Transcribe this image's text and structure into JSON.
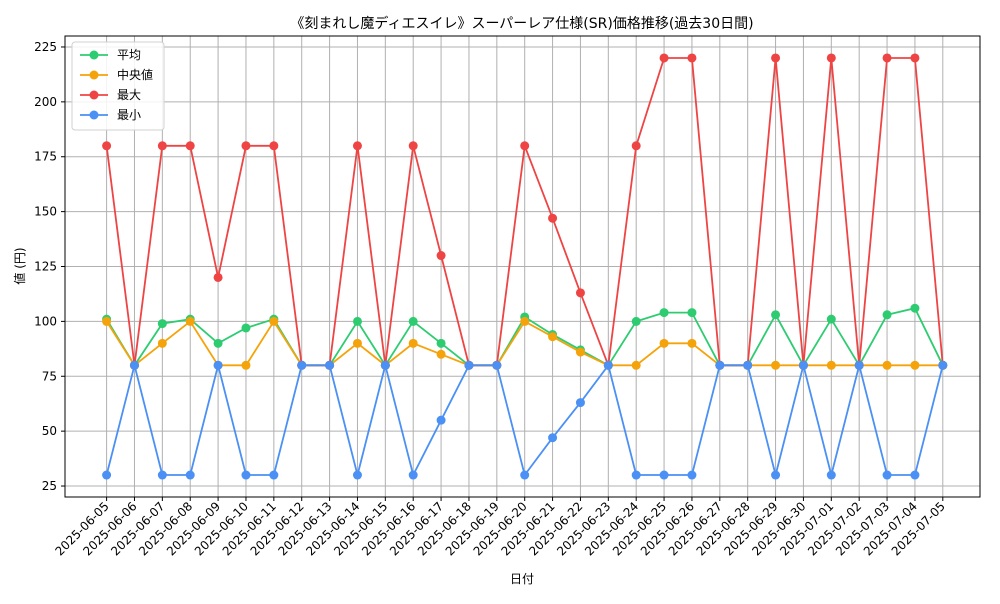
{
  "chart_data": {
    "type": "line",
    "title": "《刻まれし魔ディエスイレ》スーパーレア仕様(SR)価格推移(過去30日間)",
    "xlabel": "日付",
    "ylabel": "値 (円)",
    "ylim": [
      20,
      230
    ],
    "yticks": [
      25,
      50,
      75,
      100,
      125,
      150,
      175,
      200,
      225
    ],
    "grid": true,
    "legend_position": "top-left",
    "categories": [
      "2025-06-05",
      "2025-06-06",
      "2025-06-07",
      "2025-06-08",
      "2025-06-09",
      "2025-06-10",
      "2025-06-11",
      "2025-06-12",
      "2025-06-13",
      "2025-06-14",
      "2025-06-15",
      "2025-06-16",
      "2025-06-17",
      "2025-06-18",
      "2025-06-19",
      "2025-06-20",
      "2025-06-21",
      "2025-06-22",
      "2025-06-23",
      "2025-06-24",
      "2025-06-25",
      "2025-06-26",
      "2025-06-27",
      "2025-06-28",
      "2025-06-29",
      "2025-06-30",
      "2025-07-01",
      "2025-07-02",
      "2025-07-03",
      "2025-07-04",
      "2025-07-05"
    ],
    "series": [
      {
        "name": "平均",
        "color": "#2ecc71",
        "values": [
          101,
          80,
          99,
          101,
          90,
          97,
          101,
          80,
          80,
          100,
          80,
          100,
          90,
          80,
          80,
          102,
          94,
          87,
          80,
          100,
          104,
          104,
          80,
          80,
          103,
          80,
          101,
          80,
          103,
          106,
          80
        ]
      },
      {
        "name": "中央値",
        "color": "#f5a30a",
        "values": [
          100,
          80,
          90,
          100,
          80,
          80,
          100,
          80,
          80,
          90,
          80,
          90,
          85,
          80,
          80,
          100,
          93,
          86,
          80,
          80,
          90,
          90,
          80,
          80,
          80,
          80,
          80,
          80,
          80,
          80,
          80
        ]
      },
      {
        "name": "最大",
        "color": "#ef4444",
        "values": [
          180,
          80,
          180,
          180,
          120,
          180,
          180,
          80,
          80,
          180,
          80,
          180,
          130,
          80,
          80,
          180,
          147,
          113,
          80,
          180,
          220,
          220,
          80,
          80,
          220,
          80,
          220,
          80,
          220,
          220,
          80
        ]
      },
      {
        "name": "最小",
        "color": "#4a90f5",
        "values": [
          30,
          80,
          30,
          30,
          80,
          30,
          30,
          80,
          80,
          30,
          80,
          30,
          55,
          80,
          80,
          30,
          47,
          63,
          80,
          30,
          30,
          30,
          80,
          80,
          30,
          80,
          30,
          80,
          30,
          30,
          80
        ]
      }
    ]
  }
}
